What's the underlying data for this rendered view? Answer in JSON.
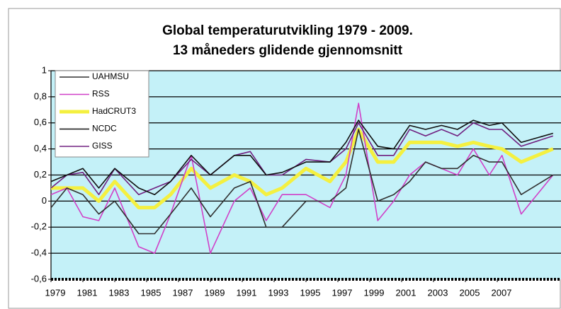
{
  "chart_data": {
    "type": "line",
    "title": "Global temperaturutvikling 1979 - 2009.",
    "subtitle": "13 måneders glidende gjennomsnitt",
    "x": [
      1979,
      1980,
      1981,
      1982,
      1983,
      1984.5,
      1985.5,
      1986.5,
      1987.8,
      1989,
      1990.5,
      1991.5,
      1992.5,
      1993.5,
      1995,
      1996.5,
      1997.5,
      1998.3,
      1999.5,
      2000.5,
      2001.5,
      2002.5,
      2003.5,
      2004.5,
      2005.5,
      2006.5,
      2007.3,
      2008.5,
      2010.5
    ],
    "xlim": [
      1979,
      2011
    ],
    "xticks": [
      1979,
      1981,
      1983,
      1985,
      1987,
      1989,
      1991,
      1993,
      1995,
      1997,
      1999,
      2001,
      2003,
      2005,
      2007
    ],
    "ylim": [
      -0.6,
      1
    ],
    "yticks": [
      {
        "value": -0.6,
        "label": "-0,6"
      },
      {
        "value": -0.4,
        "label": "-0,4"
      },
      {
        "value": -0.2,
        "label": "-0,2"
      },
      0,
      {
        "value": 0.2,
        "label": "0,2"
      },
      {
        "value": 0.4,
        "label": "0,4"
      },
      {
        "value": 0.6,
        "label": "0,6"
      },
      {
        "value": 0.8,
        "label": "0,8"
      },
      1
    ],
    "grid": true,
    "legend": "top-left",
    "series": [
      {
        "name": "UAHMSU",
        "color": "#303030",
        "values": [
          -0.05,
          0.1,
          0.05,
          -0.1,
          0.0,
          -0.25,
          -0.25,
          -0.1,
          0.1,
          -0.12,
          0.1,
          0.15,
          -0.2,
          -0.2,
          0.0,
          0.0,
          0.1,
          0.55,
          0.0,
          0.05,
          0.15,
          0.3,
          0.25,
          0.25,
          0.35,
          0.3,
          0.3,
          0.05,
          0.2
        ]
      },
      {
        "name": "RSS",
        "color": "#d040c8",
        "values": [
          0.05,
          0.1,
          -0.12,
          -0.15,
          0.1,
          -0.35,
          -0.4,
          -0.1,
          0.35,
          -0.4,
          0.0,
          0.1,
          -0.15,
          0.05,
          0.05,
          -0.05,
          0.2,
          0.75,
          -0.15,
          0.0,
          0.2,
          0.3,
          0.25,
          0.2,
          0.4,
          0.2,
          0.35,
          -0.1,
          0.2
        ]
      },
      {
        "name": "HadCRUT3",
        "color": "#f4f040",
        "values": [
          0.1,
          0.1,
          0.1,
          0.0,
          0.15,
          -0.05,
          -0.05,
          0.05,
          0.25,
          0.1,
          0.2,
          0.15,
          0.05,
          0.1,
          0.25,
          0.15,
          0.3,
          0.55,
          0.3,
          0.3,
          0.45,
          0.45,
          0.45,
          0.42,
          0.45,
          0.42,
          0.4,
          0.3,
          0.4
        ]
      },
      {
        "name": "NCDC",
        "color": "#101010",
        "values": [
          0.15,
          0.2,
          0.25,
          0.1,
          0.25,
          0.1,
          0.05,
          0.15,
          0.35,
          0.2,
          0.35,
          0.35,
          0.2,
          0.22,
          0.3,
          0.3,
          0.45,
          0.62,
          0.42,
          0.4,
          0.58,
          0.55,
          0.58,
          0.55,
          0.62,
          0.58,
          0.6,
          0.45,
          0.52
        ]
      },
      {
        "name": "GISS",
        "color": "#702080",
        "values": [
          0.1,
          0.2,
          0.22,
          0.05,
          0.25,
          0.05,
          0.1,
          0.15,
          0.32,
          0.2,
          0.35,
          0.38,
          0.2,
          0.2,
          0.32,
          0.3,
          0.4,
          0.6,
          0.35,
          0.35,
          0.55,
          0.5,
          0.55,
          0.5,
          0.6,
          0.55,
          0.55,
          0.42,
          0.5
        ]
      }
    ]
  }
}
